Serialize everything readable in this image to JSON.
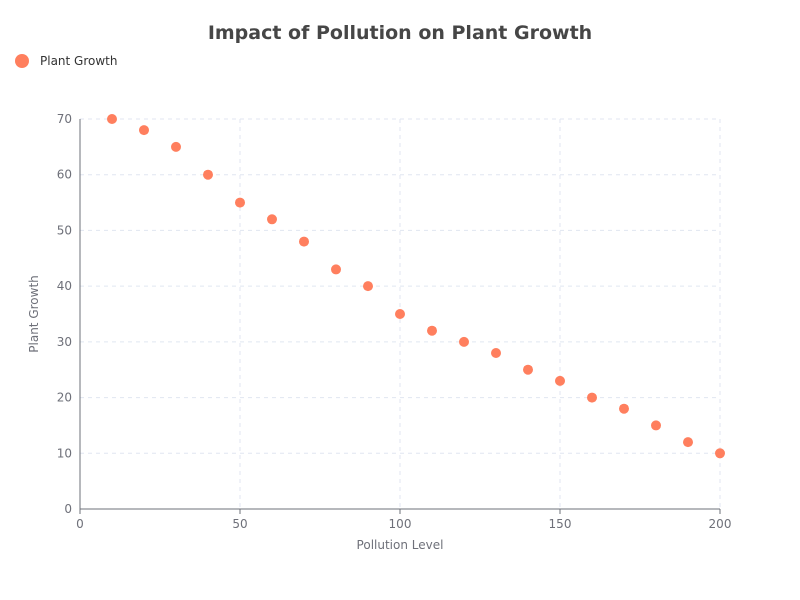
{
  "chart_data": {
    "type": "scatter",
    "title": "Impact of Pollution on Plant Growth",
    "xlabel": "Pollution Level",
    "ylabel": "Plant Growth",
    "xlim": [
      0,
      200
    ],
    "ylim": [
      0,
      70
    ],
    "x_ticks": [
      0,
      50,
      100,
      150,
      200
    ],
    "y_ticks": [
      0,
      10,
      20,
      30,
      40,
      50,
      60,
      70
    ],
    "grid": true,
    "legend_position": "top-left",
    "series": [
      {
        "name": "Plant Growth",
        "color": "#ff7f5e",
        "x": [
          10,
          20,
          30,
          40,
          50,
          60,
          70,
          80,
          90,
          100,
          110,
          120,
          130,
          140,
          150,
          160,
          170,
          180,
          190,
          200
        ],
        "y": [
          70,
          68,
          65,
          60,
          55,
          52,
          48,
          43,
          40,
          35,
          32,
          30,
          28,
          25,
          23,
          20,
          18,
          15,
          12,
          10
        ]
      }
    ]
  }
}
